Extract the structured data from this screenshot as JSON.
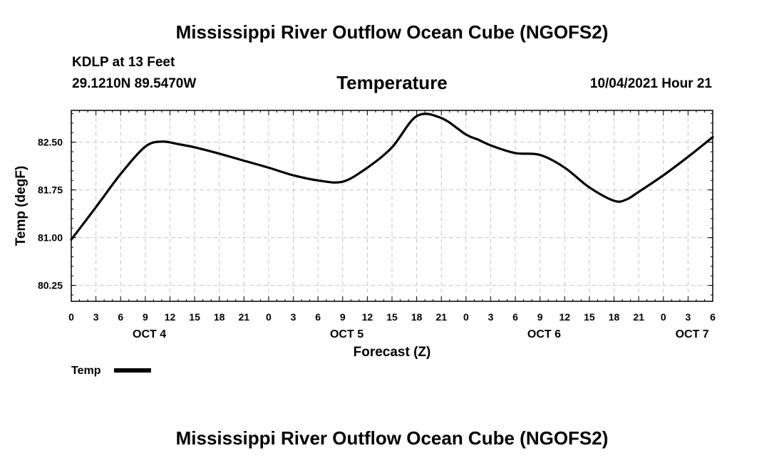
{
  "header": {
    "title": "Mississippi River Outflow Ocean Cube (NGOFS2)",
    "station": "KDLP at 13 Feet",
    "coords": "29.1210N  89.5470W",
    "variable": "Temperature",
    "datetime": "10/04/2021 Hour 21"
  },
  "footer": {
    "title": "Mississippi River Outflow Ocean Cube (NGOFS2)"
  },
  "legend": {
    "label": "Temp"
  },
  "colors": {
    "line": "#000000",
    "grid": "#c8c8c8",
    "background": "#ffffff"
  },
  "chart_data": {
    "type": "line",
    "title": "Temperature",
    "xlabel": "Forecast (Z)",
    "ylabel": "Temp (degF)",
    "xlim": [
      0,
      78
    ],
    "ylim": [
      80.0,
      83.0
    ],
    "grid": true,
    "legend_position": "bottom-left",
    "x_tick_values": [
      0,
      3,
      6,
      9,
      12,
      15,
      18,
      21,
      24,
      27,
      30,
      33,
      36,
      39,
      42,
      45,
      48,
      51,
      54,
      57,
      60,
      63,
      66,
      69,
      72,
      75,
      78
    ],
    "x_tick_labels": [
      "0",
      "3",
      "6",
      "9",
      "12",
      "15",
      "18",
      "21",
      "0",
      "3",
      "6",
      "9",
      "12",
      "15",
      "18",
      "21",
      "0",
      "3",
      "6",
      "9",
      "12",
      "15",
      "18",
      "21",
      "0",
      "3",
      "6"
    ],
    "date_labels": [
      {
        "x": 9.5,
        "label": "OCT 4"
      },
      {
        "x": 33.5,
        "label": "OCT 5"
      },
      {
        "x": 57.5,
        "label": "OCT 6"
      },
      {
        "x": 75.5,
        "label": "OCT 7"
      }
    ],
    "y_tick_values": [
      80.25,
      81.0,
      81.75,
      82.5
    ],
    "y_tick_labels": [
      "80.25",
      "81.00",
      "81.75",
      "82.50"
    ],
    "series": [
      {
        "name": "Temp",
        "x": [
          0,
          3,
          6,
          9,
          11,
          13,
          15,
          18,
          21,
          24,
          27,
          30,
          33,
          36,
          39,
          42,
          45,
          48,
          49.5,
          51,
          54,
          57,
          60,
          63,
          66,
          67.5,
          69,
          72,
          75,
          78
        ],
        "y": [
          80.97,
          81.48,
          82.0,
          82.43,
          82.51,
          82.47,
          82.42,
          82.32,
          82.21,
          82.1,
          81.98,
          81.9,
          81.88,
          82.1,
          82.42,
          82.91,
          82.88,
          82.62,
          82.54,
          82.45,
          82.33,
          82.3,
          82.1,
          81.79,
          81.58,
          81.6,
          81.72,
          81.98,
          82.27,
          82.58
        ]
      }
    ]
  }
}
